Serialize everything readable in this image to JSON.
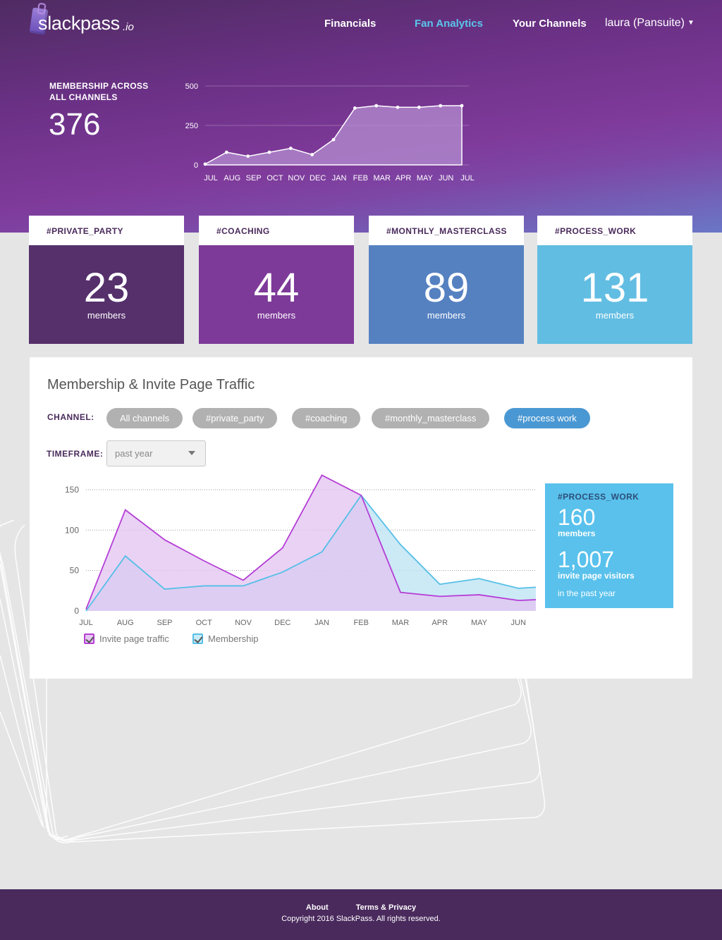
{
  "brand": {
    "name": "slackpass",
    "tld": ".io"
  },
  "nav": {
    "items": [
      "Financials",
      "Fan Analytics",
      "Your Channels"
    ],
    "active": "Fan Analytics",
    "user": "laura (Pansuite)"
  },
  "summary": {
    "label": "MEMBERSHIP ACROSS ALL CHANNELS",
    "value": "376"
  },
  "channels": [
    {
      "name": "#PRIVATE_PARTY",
      "count": "23",
      "unit": "members",
      "color": "#55306b"
    },
    {
      "name": "#COACHING",
      "count": "44",
      "unit": "members",
      "color": "#7d3a99"
    },
    {
      "name": "#MONTHLY_MASTERCLASS",
      "count": "89",
      "unit": "members",
      "color": "#5581c1"
    },
    {
      "name": "#PROCESS_WORK",
      "count": "131",
      "unit": "members",
      "color": "#62bde2"
    }
  ],
  "panel": {
    "title": "Membership & Invite Page Traffic",
    "channel_label": "CHANNEL:",
    "timeframe_label": "TIMEFRAME:",
    "filters": [
      "All channels",
      "#private_party",
      "#coaching",
      "#monthly_masterclass",
      "#process work"
    ],
    "active_filter": "#process work",
    "timeframe": "past year",
    "legend": [
      "Invite page traffic",
      "Membership"
    ],
    "stats": {
      "title": "#PROCESS_WORK",
      "members": "160",
      "members_unit": "members",
      "visitors": "1,007",
      "visitors_unit": "invite page visitors",
      "foot": "in the past year"
    }
  },
  "footer": {
    "links": [
      "About",
      "Terms & Privacy"
    ],
    "copyright": "Copyright 2016 SlackPass. All rights reserved."
  },
  "chart_data": [
    {
      "type": "area",
      "x": [
        "JUL",
        "AUG",
        "SEP",
        "OCT",
        "NOV",
        "DEC",
        "JAN",
        "FEB",
        "MAR",
        "APR",
        "MAY",
        "JUN",
        "JUL"
      ],
      "series": [
        {
          "values": [
            5,
            80,
            55,
            80,
            105,
            65,
            160,
            360,
            375,
            365,
            365,
            375,
            375
          ]
        }
      ],
      "yticks": [
        0,
        250,
        500
      ],
      "ylim": [
        0,
        500
      ],
      "grid": true,
      "color": "#b48ed0"
    },
    {
      "type": "area",
      "x": [
        "JUL",
        "AUG",
        "SEP",
        "OCT",
        "NOV",
        "DEC",
        "JAN",
        "FEB",
        "MAR",
        "APR",
        "MAY",
        "JUN",
        "JUL"
      ],
      "series": [
        {
          "name": "Invite page traffic",
          "values": [
            2,
            125,
            88,
            62,
            38,
            78,
            168,
            143,
            23,
            18,
            20,
            13,
            15
          ],
          "color": "#b53ed6"
        },
        {
          "name": "Membership",
          "values": [
            0,
            68,
            27,
            31,
            31,
            48,
            73,
            143,
            82,
            33,
            40,
            28,
            31
          ],
          "color": "#55bfe6"
        }
      ],
      "yticks": [
        0,
        50,
        100,
        150
      ],
      "ylim": [
        0,
        170
      ],
      "grid": true
    }
  ]
}
